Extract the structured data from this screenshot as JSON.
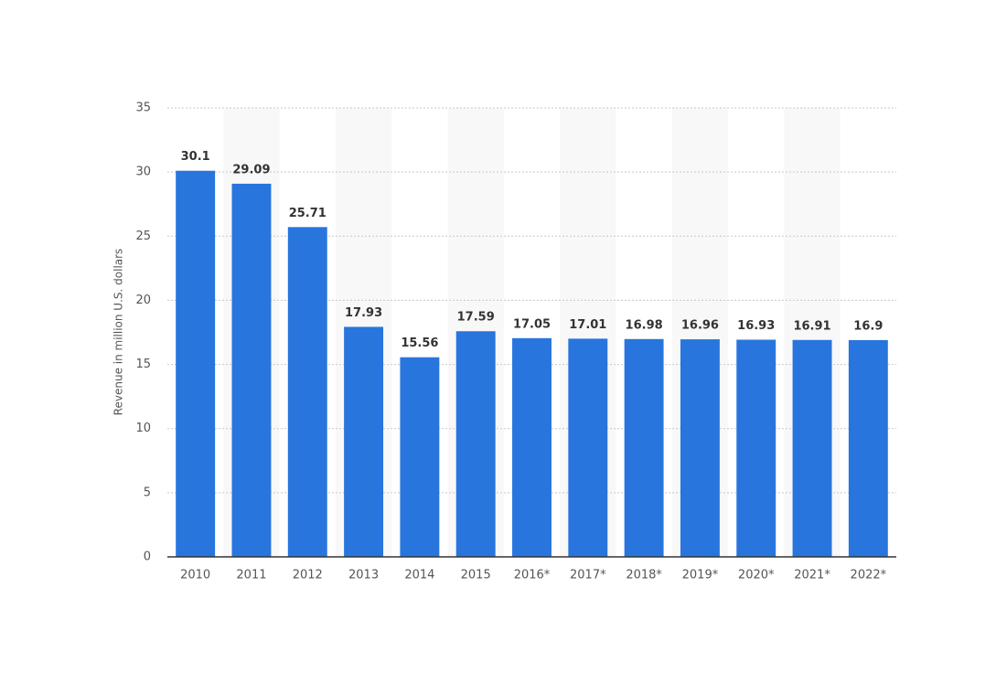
{
  "chart_data": {
    "type": "bar",
    "y_label": "Revenue in million U.S. dollars",
    "categories": [
      "2010",
      "2011",
      "2012",
      "2013",
      "2014",
      "2015",
      "2016*",
      "2017*",
      "2018*",
      "2019*",
      "2020*",
      "2021*",
      "2022*"
    ],
    "values": [
      30.1,
      29.09,
      25.71,
      17.93,
      15.56,
      17.59,
      17.05,
      17.01,
      16.98,
      16.96,
      16.93,
      16.91,
      16.9
    ],
    "color": "#2875dd",
    "ylim": [
      0,
      35
    ],
    "yticks": [
      0,
      5,
      10,
      15,
      20,
      25,
      30,
      35
    ],
    "grid": true
  }
}
